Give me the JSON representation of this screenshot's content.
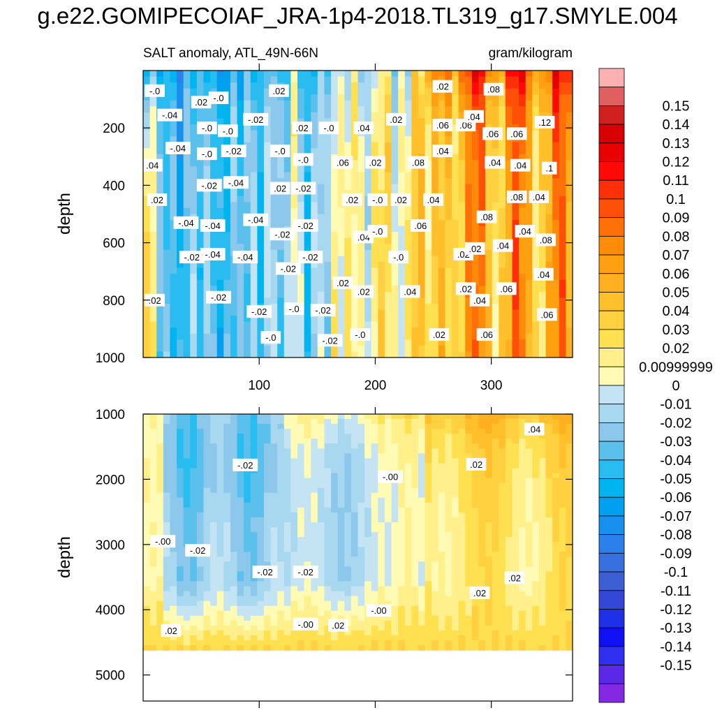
{
  "title": "g.e22.GOMIPECOIAF_JRA-1p4-2018.TL319_g17.SMYLE.004",
  "subtitle_left": "SALT anomaly, ATL_49N-66N",
  "subtitle_right": "gram/kilogram",
  "colors": {
    "neg": [
      "#c4e4f4",
      "#a8d8f0",
      "#8cc8ec",
      "#5cc0ec",
      "#28bcf0",
      "#00b4f0",
      "#00a0f0",
      "#1890f0",
      "#2c80ec",
      "#3870e0",
      "#3c60d4",
      "#3448d8",
      "#2030e8",
      "#1010f4",
      "#3030f0",
      "#5c28e8",
      "#8428e4"
    ],
    "pos": [
      "#fffab4",
      "#fff08c",
      "#ffe050",
      "#ffd040",
      "#ffc02c",
      "#ffb020",
      "#ffa010",
      "#ff8c08",
      "#ff7008",
      "#ff5008",
      "#ff3008",
      "#ff0808",
      "#e80000",
      "#d80000",
      "#d02020",
      "#e06060",
      "#ffb0b0"
    ]
  },
  "chart_data": [
    {
      "type": "heatmap",
      "panel": "upper",
      "subtitle_left": "SALT anomaly, ATL_49N-66N",
      "subtitle_right": "gram/kilogram",
      "ylabel": "depth",
      "ylim": [
        0,
        1000
      ],
      "xlim": [
        0,
        370
      ],
      "yticks": [
        200,
        400,
        600,
        800,
        1000
      ],
      "xticks": [
        100,
        200,
        300
      ],
      "contour_labels": [
        {
          "x": 10,
          "y": 70,
          "t": "-.0"
        },
        {
          "x": 23,
          "y": 155,
          "t": "-.04"
        },
        {
          "x": 30,
          "y": 270,
          "t": "-.04"
        },
        {
          "x": 8,
          "y": 330,
          "t": ".04"
        },
        {
          "x": 12,
          "y": 450,
          "t": ".02"
        },
        {
          "x": 37,
          "y": 530,
          "t": "-.04"
        },
        {
          "x": 42,
          "y": 650,
          "t": "-.02"
        },
        {
          "x": 10,
          "y": 800,
          "t": ".02"
        },
        {
          "x": 50,
          "y": 110,
          "t": ".02"
        },
        {
          "x": 55,
          "y": 200,
          "t": "-.0"
        },
        {
          "x": 55,
          "y": 290,
          "t": "-.0"
        },
        {
          "x": 57,
          "y": 400,
          "t": "-.02"
        },
        {
          "x": 60,
          "y": 540,
          "t": "-.04"
        },
        {
          "x": 60,
          "y": 640,
          "t": "-.04"
        },
        {
          "x": 65,
          "y": 95,
          "t": "-.0"
        },
        {
          "x": 73,
          "y": 210,
          "t": "-.0"
        },
        {
          "x": 78,
          "y": 280,
          "t": "-.02"
        },
        {
          "x": 80,
          "y": 390,
          "t": "-.04"
        },
        {
          "x": 65,
          "y": 790,
          "t": "-.02"
        },
        {
          "x": 88,
          "y": 650,
          "t": "-.04"
        },
        {
          "x": 97,
          "y": 170,
          "t": "-.02"
        },
        {
          "x": 97,
          "y": 520,
          "t": "-.04"
        },
        {
          "x": 117,
          "y": 70,
          "t": ".02"
        },
        {
          "x": 118,
          "y": 280,
          "t": "-.0"
        },
        {
          "x": 118,
          "y": 410,
          "t": ".02"
        },
        {
          "x": 120,
          "y": 570,
          "t": "-.02"
        },
        {
          "x": 125,
          "y": 690,
          "t": "-.02"
        },
        {
          "x": 100,
          "y": 840,
          "t": "-.02"
        },
        {
          "x": 130,
          "y": 830,
          "t": "-.0"
        },
        {
          "x": 110,
          "y": 930,
          "t": "-.0"
        },
        {
          "x": 137,
          "y": 200,
          "t": ".02"
        },
        {
          "x": 138,
          "y": 310,
          "t": "-.0"
        },
        {
          "x": 138,
          "y": 410,
          "t": "-.02"
        },
        {
          "x": 140,
          "y": 540,
          "t": "-.02"
        },
        {
          "x": 144,
          "y": 650,
          "t": "-.02"
        },
        {
          "x": 155,
          "y": 835,
          "t": "-.02"
        },
        {
          "x": 161,
          "y": 940,
          "t": "-.02"
        },
        {
          "x": 160,
          "y": 200,
          "t": "-.0"
        },
        {
          "x": 172,
          "y": 320,
          "t": ".06"
        },
        {
          "x": 172,
          "y": 740,
          "t": ".02"
        },
        {
          "x": 180,
          "y": 450,
          "t": ".02"
        },
        {
          "x": 190,
          "y": 200,
          "t": ".04"
        },
        {
          "x": 190,
          "y": 580,
          "t": ".04"
        },
        {
          "x": 190,
          "y": 770,
          "t": ".02"
        },
        {
          "x": 200,
          "y": 320,
          "t": ".02"
        },
        {
          "x": 202,
          "y": 450,
          "t": "-.0"
        },
        {
          "x": 202,
          "y": 560,
          "t": "-.0"
        },
        {
          "x": 187,
          "y": 920,
          "t": "-.0"
        },
        {
          "x": 218,
          "y": 170,
          "t": ".02"
        },
        {
          "x": 222,
          "y": 450,
          "t": ".02"
        },
        {
          "x": 220,
          "y": 650,
          "t": "-.0"
        },
        {
          "x": 230,
          "y": 770,
          "t": ".04"
        },
        {
          "x": 237,
          "y": 320,
          "t": ".08"
        },
        {
          "x": 239,
          "y": 540,
          "t": ".06"
        },
        {
          "x": 250,
          "y": 450,
          "t": ".04"
        },
        {
          "x": 258,
          "y": 190,
          "t": ".06"
        },
        {
          "x": 258,
          "y": 280,
          "t": ".04"
        },
        {
          "x": 255,
          "y": 920,
          "t": ".02"
        },
        {
          "x": 258,
          "y": 55,
          "t": ".02"
        },
        {
          "x": 278,
          "y": 190,
          "t": ".06"
        },
        {
          "x": 276,
          "y": 640,
          "t": ".02"
        },
        {
          "x": 278,
          "y": 760,
          "t": ".02"
        },
        {
          "x": 285,
          "y": 160,
          "t": ".04"
        },
        {
          "x": 286,
          "y": 620,
          "t": ".02"
        },
        {
          "x": 290,
          "y": 800,
          "t": ".04"
        },
        {
          "x": 296,
          "y": 510,
          "t": ".08"
        },
        {
          "x": 296,
          "y": 920,
          "t": ".06"
        },
        {
          "x": 302,
          "y": 65,
          "t": ".08"
        },
        {
          "x": 301,
          "y": 220,
          "t": ".06"
        },
        {
          "x": 303,
          "y": 320,
          "t": ".04"
        },
        {
          "x": 310,
          "y": 610,
          "t": ".04"
        },
        {
          "x": 313,
          "y": 760,
          "t": ".06"
        },
        {
          "x": 322,
          "y": 440,
          "t": ".08"
        },
        {
          "x": 322,
          "y": 220,
          "t": ".06"
        },
        {
          "x": 325,
          "y": 330,
          "t": ".04"
        },
        {
          "x": 329,
          "y": 560,
          "t": ".04"
        },
        {
          "x": 341,
          "y": 440,
          "t": ".04"
        },
        {
          "x": 346,
          "y": 180,
          "t": ".12"
        },
        {
          "x": 347,
          "y": 590,
          "t": ".08"
        },
        {
          "x": 345,
          "y": 710,
          "t": ".04"
        },
        {
          "x": 350,
          "y": 340,
          "t": ".1"
        },
        {
          "x": 348,
          "y": 850,
          "t": ".06"
        }
      ]
    },
    {
      "type": "heatmap",
      "panel": "lower",
      "ylabel": "depth",
      "ylim": [
        1000,
        5400
      ],
      "xlim": [
        0,
        370
      ],
      "yticks": [
        1000,
        2000,
        3000,
        4000,
        5000
      ],
      "xticks": [
        100,
        200,
        300
      ],
      "data_bottom_depth": 4620,
      "contour_labels": [
        {
          "x": 88,
          "y": 1780,
          "t": "-.02"
        },
        {
          "x": 17,
          "y": 2950,
          "t": "-.00"
        },
        {
          "x": 47,
          "y": 3090,
          "t": "-.02"
        },
        {
          "x": 105,
          "y": 3420,
          "t": "-.02"
        },
        {
          "x": 140,
          "y": 3420,
          "t": "-.02"
        },
        {
          "x": 140,
          "y": 4220,
          "t": "-.00"
        },
        {
          "x": 168,
          "y": 4240,
          "t": ".02"
        },
        {
          "x": 213,
          "y": 1960,
          "t": "-.00"
        },
        {
          "x": 203,
          "y": 4010,
          "t": "-.00"
        },
        {
          "x": 287,
          "y": 1770,
          "t": ".02"
        },
        {
          "x": 337,
          "y": 1230,
          "t": ".04"
        },
        {
          "x": 320,
          "y": 3510,
          "t": ".02"
        },
        {
          "x": 290,
          "y": 3740,
          "t": ".02"
        },
        {
          "x": 24,
          "y": 4320,
          "t": ".02"
        }
      ]
    },
    {
      "type": "colorbar",
      "levels": [
        "0.15",
        "0.14",
        "0.13",
        "0.12",
        "0.11",
        "0.1",
        "0.09",
        "0.08",
        "0.07",
        "0.06",
        "0.05",
        "0.04",
        "0.03",
        "0.02",
        "0.00999999",
        "0",
        "-0.01",
        "-0.02",
        "-0.03",
        "-0.04",
        "-0.05",
        "-0.06",
        "-0.07",
        "-0.08",
        "-0.09",
        "-0.1",
        "-0.11",
        "-0.12",
        "-0.13",
        "-0.14",
        "-0.15"
      ]
    }
  ]
}
